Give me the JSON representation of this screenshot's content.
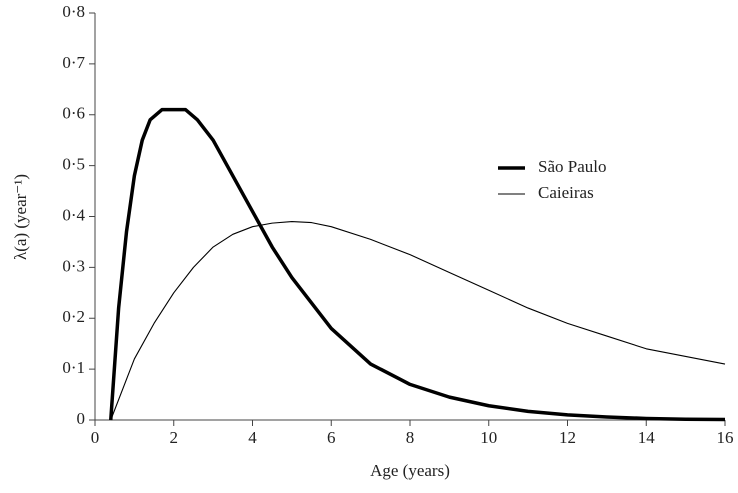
{
  "chart_data": {
    "type": "line",
    "xlabel": "Age (years)",
    "ylabel": "λ(a) (year⁻¹)",
    "xlim": [
      0,
      16
    ],
    "ylim": [
      0,
      0.8
    ],
    "xticks": [
      0,
      2,
      4,
      6,
      8,
      10,
      12,
      14,
      16
    ],
    "yticks": [
      0,
      {
        "value": 0.1,
        "label": "0·1"
      },
      {
        "value": 0.2,
        "label": "0·2"
      },
      {
        "value": 0.3,
        "label": "0·3"
      },
      {
        "value": 0.4,
        "label": "0·4"
      },
      {
        "value": 0.5,
        "label": "0·5"
      },
      {
        "value": 0.6,
        "label": "0·6"
      },
      {
        "value": 0.7,
        "label": "0·7"
      },
      {
        "value": 0.8,
        "label": "0·8"
      }
    ],
    "grid": false,
    "legend": "right",
    "series": [
      {
        "name": "São Paulo",
        "color": "#000000",
        "x": [
          0.4,
          0.6,
          0.8,
          1.0,
          1.2,
          1.4,
          1.7,
          2.0,
          2.3,
          2.6,
          3.0,
          3.5,
          4.0,
          4.5,
          5.0,
          6.0,
          7.0,
          8.0,
          9.0,
          10,
          11,
          12,
          13,
          14,
          15,
          16
        ],
        "values": [
          0,
          0.22,
          0.37,
          0.48,
          0.55,
          0.59,
          0.61,
          0.61,
          0.61,
          0.59,
          0.55,
          0.48,
          0.41,
          0.34,
          0.28,
          0.18,
          0.11,
          0.07,
          0.045,
          0.028,
          0.017,
          0.01,
          0.006,
          0.003,
          0.0015,
          0.001
        ]
      },
      {
        "name": "Caieiras",
        "color": "#000000",
        "x": [
          0.4,
          1.0,
          1.5,
          2.0,
          2.5,
          3.0,
          3.5,
          4.0,
          4.5,
          5.0,
          5.5,
          6.0,
          7.0,
          8.0,
          9.0,
          10,
          11,
          12,
          13,
          14,
          15,
          16
        ],
        "values": [
          0,
          0.12,
          0.19,
          0.25,
          0.3,
          0.34,
          0.365,
          0.38,
          0.387,
          0.39,
          0.388,
          0.38,
          0.355,
          0.325,
          0.29,
          0.255,
          0.22,
          0.19,
          0.165,
          0.14,
          0.125,
          0.11
        ]
      }
    ]
  }
}
